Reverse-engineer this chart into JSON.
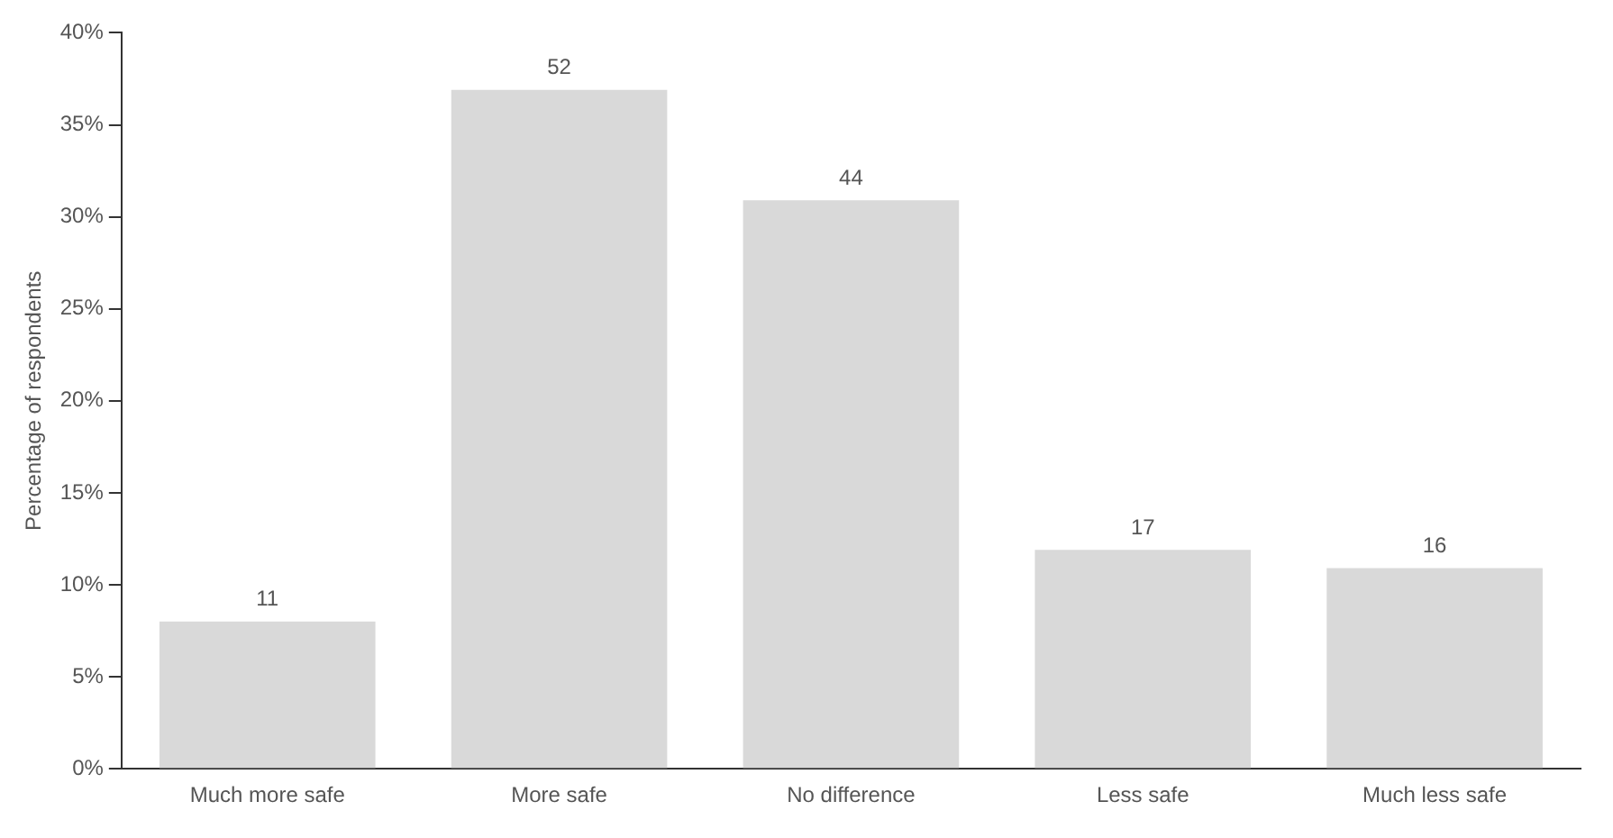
{
  "chart_data": {
    "type": "bar",
    "ylabel": "Percentage of respondents",
    "categories": [
      "Much more safe",
      "More safe",
      "No difference",
      "Less safe",
      "Much less safe"
    ],
    "values": [
      8,
      36.9,
      30.9,
      11.9,
      10.9
    ],
    "annotations": [
      {
        "text": "11",
        "x": "Much more safe",
        "y": 8
      },
      {
        "text": "52",
        "x": "More safe",
        "y": 36.9
      },
      {
        "text": "44",
        "x": "No difference",
        "y": 30.9
      },
      {
        "text": "17",
        "x": "Less safe",
        "y": 11.9
      },
      {
        "text": "16",
        "x": "Much less safe",
        "y": 10.9
      }
    ],
    "color": "#d9d9d9",
    "ylim": [
      0,
      40
    ],
    "yticks": [
      {
        "value": 0,
        "label": "0%"
      },
      {
        "value": 5,
        "label": "5%"
      },
      {
        "value": 10,
        "label": "10%"
      },
      {
        "value": 15,
        "label": "15%"
      },
      {
        "value": 20,
        "label": "20%"
      },
      {
        "value": 25,
        "label": "25%"
      },
      {
        "value": 30,
        "label": "30%"
      },
      {
        "value": 35,
        "label": "35%"
      },
      {
        "value": 40,
        "label": "40%"
      }
    ],
    "grid": false,
    "legend": false
  }
}
